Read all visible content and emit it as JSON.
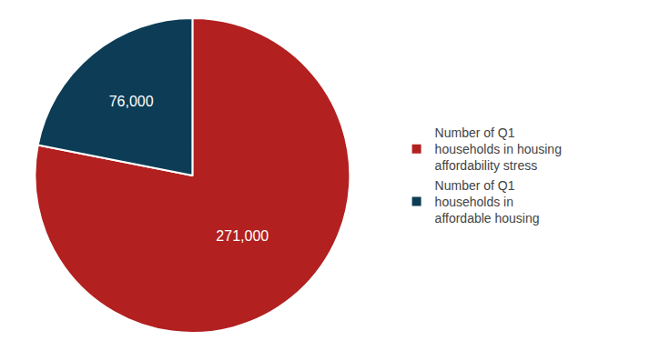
{
  "chart_data": {
    "type": "pie",
    "categories": [
      "Number of Q1\nhouseholds in housing\naffordability stress",
      "Number of Q1\nhouseholds in\naffordable housing"
    ],
    "values": [
      271000,
      76000
    ],
    "value_labels": [
      "271,000",
      "76,000"
    ],
    "colors": [
      "#B22020",
      "#0D3D56"
    ],
    "data_labels": true,
    "legend": "right"
  }
}
